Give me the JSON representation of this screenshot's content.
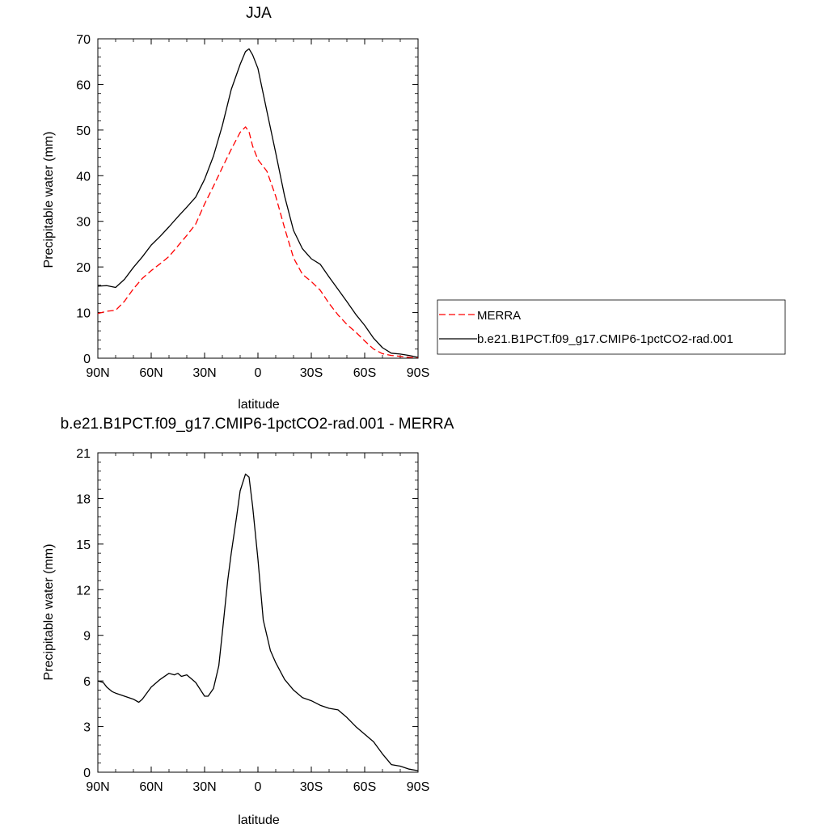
{
  "chart_data": [
    {
      "type": "line",
      "title": "JJA",
      "xlabel": "latitude",
      "ylabel": "Precipitable water (mm)",
      "xlim": [
        90,
        -90
      ],
      "ylim": [
        0,
        70
      ],
      "x_ticks": [
        90,
        60,
        30,
        0,
        -30,
        -60,
        -90
      ],
      "x_tick_labels": [
        "90N",
        "60N",
        "30N",
        "0",
        "30S",
        "60S",
        "90S"
      ],
      "y_ticks": [
        0,
        10,
        20,
        30,
        40,
        50,
        60,
        70
      ],
      "y_tick_labels": [
        "0",
        "10",
        "20",
        "30",
        "40",
        "50",
        "60",
        "70"
      ],
      "legend_position": "right, outside the plot",
      "series": [
        {
          "name": "MERRA",
          "color": "#ff0000",
          "dash": "dashed",
          "x": [
            90,
            85,
            80,
            75,
            70,
            65,
            60,
            55,
            50,
            45,
            40,
            35,
            30,
            25,
            20,
            15,
            10,
            7,
            5,
            3,
            0,
            -5,
            -10,
            -15,
            -20,
            -25,
            -30,
            -35,
            -40,
            -45,
            -50,
            -55,
            -60,
            -65,
            -70,
            -75,
            -80,
            -85,
            -90
          ],
          "y": [
            9.8,
            10.3,
            10.5,
            12.5,
            15.2,
            17.5,
            19.2,
            20.7,
            22.3,
            24.6,
            26.9,
            29.4,
            33.8,
            37.7,
            41.8,
            45.8,
            49.5,
            50.7,
            49.6,
            46.5,
            43.5,
            41.0,
            35.5,
            28.5,
            22.0,
            18.4,
            16.8,
            14.9,
            12.0,
            9.5,
            7.4,
            5.7,
            3.8,
            2.0,
            1.0,
            0.6,
            0.4,
            0.2,
            0.1
          ]
        },
        {
          "name": "b.e21.B1PCT.f09_g17.CMIP6-1pctCO2-rad.001",
          "color": "#000000",
          "dash": "solid",
          "x": [
            90,
            85,
            80,
            75,
            70,
            65,
            60,
            55,
            50,
            45,
            40,
            35,
            30,
            25,
            20,
            15,
            10,
            7,
            5,
            3,
            0,
            -5,
            -10,
            -15,
            -20,
            -25,
            -30,
            -35,
            -40,
            -45,
            -50,
            -55,
            -60,
            -65,
            -70,
            -75,
            -80,
            -85,
            -90
          ],
          "y": [
            15.8,
            15.9,
            15.5,
            17.3,
            19.9,
            22.2,
            24.8,
            26.7,
            28.8,
            31.0,
            33.1,
            35.3,
            39.2,
            44.3,
            51.0,
            58.9,
            64.4,
            67.2,
            67.8,
            66.5,
            63.5,
            54.2,
            45.0,
            35.5,
            28.0,
            24.0,
            21.8,
            20.6,
            17.8,
            15.1,
            12.4,
            9.6,
            7.2,
            4.4,
            2.3,
            1.1,
            0.9,
            0.6,
            0.2
          ]
        }
      ]
    },
    {
      "type": "line",
      "title": "b.e21.B1PCT.f09_g17.CMIP6-1pctCO2-rad.001 - MERRA",
      "xlabel": "latitude",
      "ylabel": "Precipitable water (mm)",
      "xlim": [
        90,
        -90
      ],
      "ylim": [
        0,
        21
      ],
      "x_ticks": [
        90,
        60,
        30,
        0,
        -30,
        -60,
        -90
      ],
      "x_tick_labels": [
        "90N",
        "60N",
        "30N",
        "0",
        "30S",
        "60S",
        "90S"
      ],
      "y_ticks": [
        0,
        3,
        6,
        9,
        12,
        15,
        18,
        21
      ],
      "y_tick_labels": [
        "0",
        "3",
        "6",
        "9",
        "12",
        "15",
        "18",
        "21"
      ],
      "series": [
        {
          "color": "#000000",
          "dash": "solid",
          "x": [
            90,
            87,
            85,
            82,
            80,
            75,
            70,
            67,
            65,
            60,
            55,
            50,
            47,
            45,
            43,
            40,
            37,
            35,
            30,
            28,
            25,
            22,
            20,
            17,
            15,
            12,
            10,
            7,
            5,
            3,
            0,
            -3,
            -7,
            -10,
            -15,
            -20,
            -25,
            -30,
            -35,
            -40,
            -45,
            -50,
            -55,
            -60,
            -65,
            -70,
            -75,
            -80,
            -85,
            -90
          ],
          "y": [
            6.0,
            5.9,
            5.6,
            5.3,
            5.2,
            5.0,
            4.8,
            4.6,
            4.8,
            5.6,
            6.1,
            6.5,
            6.4,
            6.5,
            6.3,
            6.4,
            6.1,
            5.9,
            5.0,
            5.0,
            5.5,
            7.0,
            9.2,
            12.6,
            14.4,
            16.8,
            18.5,
            19.6,
            19.4,
            17.5,
            14.0,
            10.0,
            8.0,
            7.2,
            6.1,
            5.4,
            4.9,
            4.7,
            4.4,
            4.2,
            4.1,
            3.6,
            3.0,
            2.5,
            2.0,
            1.2,
            0.5,
            0.4,
            0.2,
            0.1
          ]
        }
      ]
    }
  ],
  "legend": {
    "items": [
      {
        "label": "MERRA",
        "color": "#ff0000",
        "dash": "dashed"
      },
      {
        "label": "b.e21.B1PCT.f09_g17.CMIP6-1pctCO2-rad.001",
        "color": "#000000",
        "dash": "solid"
      }
    ]
  }
}
